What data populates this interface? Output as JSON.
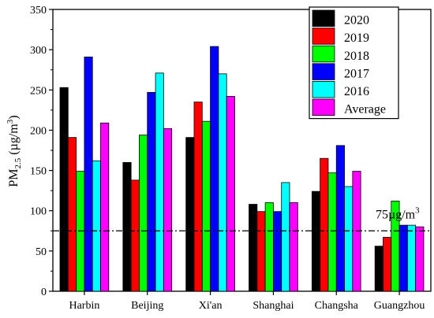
{
  "chart_data": {
    "type": "bar",
    "title": "",
    "xlabel": "",
    "ylabel": {
      "base": "PM",
      "sub": "2.5",
      "unit": " (µg/m",
      "sup": "3",
      "close": ")"
    },
    "ylim": [
      0,
      350
    ],
    "yticks": [
      0,
      50,
      100,
      150,
      200,
      250,
      300,
      350
    ],
    "grid": false,
    "legend_placement": "top-right",
    "categories": [
      "Harbin",
      "Beijing",
      "Xi'an",
      "Shanghai",
      "Changsha",
      "Guangzhou"
    ],
    "series": [
      {
        "name": "2020",
        "color": "#000000",
        "values": [
          253,
          160,
          191,
          108,
          124,
          56
        ]
      },
      {
        "name": "2019",
        "color": "#ff0000",
        "values": [
          191,
          138,
          235,
          99,
          165,
          67
        ]
      },
      {
        "name": "2018",
        "color": "#00ff00",
        "values": [
          149,
          194,
          211,
          110,
          147,
          112
        ]
      },
      {
        "name": "2017",
        "color": "#0000ff",
        "values": [
          291,
          247,
          304,
          99,
          181,
          82
        ]
      },
      {
        "name": "2016",
        "color": "#00ffff",
        "values": [
          162,
          271,
          270,
          135,
          130,
          82
        ]
      },
      {
        "name": "Average",
        "color": "#ff00ff",
        "values": [
          209,
          202,
          242,
          110,
          149,
          80
        ]
      }
    ],
    "reference_line": {
      "value": 75,
      "label": "75µg/m",
      "label_sup": "3",
      "style": "dash-dot"
    }
  }
}
